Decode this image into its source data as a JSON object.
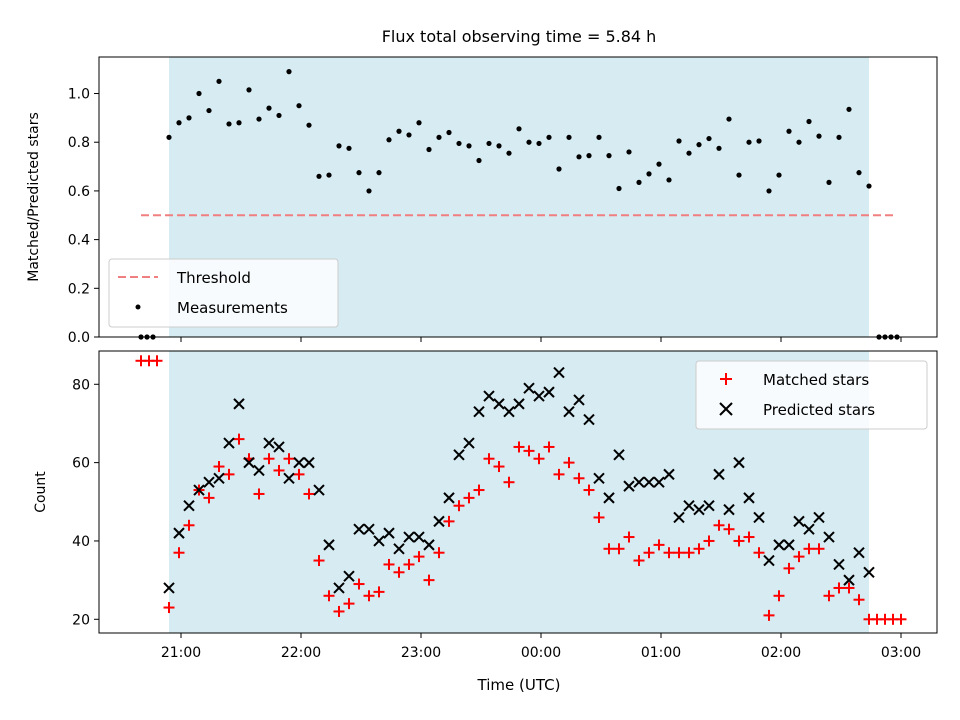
{
  "chart_data": {
    "type": "scatter",
    "title": "Flux total observing time = 5.84 h",
    "xlabel": "Time (UTC)",
    "x_ticks": [
      "21:00",
      "22:00",
      "23:00",
      "00:00",
      "01:00",
      "02:00",
      "03:00"
    ],
    "shaded_region": {
      "start": "20:54",
      "end": "02:44",
      "color": "#add8e6"
    },
    "panels": [
      {
        "id": "ratio",
        "ylabel": "Matched/Predicted stars",
        "ylim": [
          0,
          1.15
        ],
        "y_ticks": [
          0.0,
          0.2,
          0.4,
          0.6,
          0.8,
          1.0
        ],
        "legend_position": "lower-left",
        "threshold": {
          "name": "Threshold",
          "value": 0.5,
          "x_start": "20:40",
          "x_end": "02:56",
          "color": "#f08080"
        },
        "series": [
          {
            "name": "Measurements",
            "marker": "dot",
            "color": "#000000",
            "points": [
              [
                "20:40",
                0.0
              ],
              [
                "20:43",
                0.0
              ],
              [
                "20:46",
                0.0
              ],
              [
                "20:54",
                0.82
              ],
              [
                "20:59",
                0.88
              ],
              [
                "21:04",
                0.9
              ],
              [
                "21:09",
                1.0
              ],
              [
                "21:14",
                0.93
              ],
              [
                "21:19",
                1.05
              ],
              [
                "21:24",
                0.875
              ],
              [
                "21:29",
                0.88
              ],
              [
                "21:34",
                1.015
              ],
              [
                "21:39",
                0.895
              ],
              [
                "21:44",
                0.94
              ],
              [
                "21:49",
                0.91
              ],
              [
                "21:54",
                1.09
              ],
              [
                "21:59",
                0.95
              ],
              [
                "22:04",
                0.87
              ],
              [
                "22:09",
                0.66
              ],
              [
                "22:14",
                0.665
              ],
              [
                "22:19",
                0.785
              ],
              [
                "22:24",
                0.775
              ],
              [
                "22:29",
                0.675
              ],
              [
                "22:34",
                0.6
              ],
              [
                "22:39",
                0.675
              ],
              [
                "22:44",
                0.81
              ],
              [
                "22:49",
                0.845
              ],
              [
                "22:54",
                0.83
              ],
              [
                "22:59",
                0.88
              ],
              [
                "23:04",
                0.77
              ],
              [
                "23:09",
                0.82
              ],
              [
                "23:14",
                0.84
              ],
              [
                "23:19",
                0.795
              ],
              [
                "23:24",
                0.785
              ],
              [
                "23:29",
                0.725
              ],
              [
                "23:34",
                0.795
              ],
              [
                "23:39",
                0.785
              ],
              [
                "23:44",
                0.755
              ],
              [
                "23:49",
                0.855
              ],
              [
                "23:54",
                0.8
              ],
              [
                "23:59",
                0.795
              ],
              [
                "00:04",
                0.82
              ],
              [
                "00:09",
                0.69
              ],
              [
                "00:14",
                0.82
              ],
              [
                "00:19",
                0.74
              ],
              [
                "00:24",
                0.745
              ],
              [
                "00:29",
                0.82
              ],
              [
                "00:34",
                0.745
              ],
              [
                "00:39",
                0.61
              ],
              [
                "00:44",
                0.76
              ],
              [
                "00:49",
                0.635
              ],
              [
                "00:54",
                0.67
              ],
              [
                "00:59",
                0.71
              ],
              [
                "01:04",
                0.645
              ],
              [
                "01:09",
                0.805
              ],
              [
                "01:14",
                0.755
              ],
              [
                "01:19",
                0.79
              ],
              [
                "01:24",
                0.815
              ],
              [
                "01:29",
                0.775
              ],
              [
                "01:34",
                0.895
              ],
              [
                "01:39",
                0.665
              ],
              [
                "01:44",
                0.8
              ],
              [
                "01:49",
                0.805
              ],
              [
                "01:54",
                0.6
              ],
              [
                "01:59",
                0.665
              ],
              [
                "02:04",
                0.845
              ],
              [
                "02:09",
                0.8
              ],
              [
                "02:14",
                0.885
              ],
              [
                "02:19",
                0.825
              ],
              [
                "02:24",
                0.635
              ],
              [
                "02:29",
                0.82
              ],
              [
                "02:34",
                0.935
              ],
              [
                "02:39",
                0.675
              ],
              [
                "02:44",
                0.62
              ],
              [
                "02:49",
                0.0
              ],
              [
                "02:52",
                0.0
              ],
              [
                "02:55",
                0.0
              ],
              [
                "02:58",
                0.0
              ]
            ]
          }
        ]
      },
      {
        "id": "count",
        "ylabel": "Count",
        "ylim": [
          16.5,
          88.5
        ],
        "y_ticks": [
          20,
          40,
          60,
          80
        ],
        "legend_position": "upper-right",
        "series": [
          {
            "name": "Matched stars",
            "marker": "plus",
            "color": "#ff0000",
            "points": [
              [
                "20:40",
                86
              ],
              [
                "20:44",
                86
              ],
              [
                "20:48",
                86
              ],
              [
                "20:54",
                23
              ],
              [
                "20:59",
                37
              ],
              [
                "21:04",
                44
              ],
              [
                "21:09",
                53
              ],
              [
                "21:14",
                51
              ],
              [
                "21:19",
                59
              ],
              [
                "21:24",
                57
              ],
              [
                "21:29",
                66
              ],
              [
                "21:34",
                61
              ],
              [
                "21:39",
                52
              ],
              [
                "21:44",
                61
              ],
              [
                "21:49",
                58
              ],
              [
                "21:54",
                61
              ],
              [
                "21:59",
                57
              ],
              [
                "22:04",
                52
              ],
              [
                "22:09",
                35
              ],
              [
                "22:14",
                26
              ],
              [
                "22:19",
                22
              ],
              [
                "22:24",
                24
              ],
              [
                "22:29",
                29
              ],
              [
                "22:34",
                26
              ],
              [
                "22:39",
                27
              ],
              [
                "22:44",
                34
              ],
              [
                "22:49",
                32
              ],
              [
                "22:54",
                34
              ],
              [
                "22:59",
                36
              ],
              [
                "23:04",
                30
              ],
              [
                "23:09",
                37
              ],
              [
                "23:14",
                45
              ],
              [
                "23:19",
                49
              ],
              [
                "23:24",
                51
              ],
              [
                "23:29",
                53
              ],
              [
                "23:34",
                61
              ],
              [
                "23:39",
                59
              ],
              [
                "23:44",
                55
              ],
              [
                "23:49",
                64
              ],
              [
                "23:54",
                63
              ],
              [
                "23:59",
                61
              ],
              [
                "00:04",
                64
              ],
              [
                "00:09",
                57
              ],
              [
                "00:14",
                60
              ],
              [
                "00:19",
                56
              ],
              [
                "00:24",
                53
              ],
              [
                "00:29",
                46
              ],
              [
                "00:34",
                38
              ],
              [
                "00:39",
                38
              ],
              [
                "00:44",
                41
              ],
              [
                "00:49",
                35
              ],
              [
                "00:54",
                37
              ],
              [
                "00:59",
                39
              ],
              [
                "01:04",
                37
              ],
              [
                "01:09",
                37
              ],
              [
                "01:14",
                37
              ],
              [
                "01:19",
                38
              ],
              [
                "01:24",
                40
              ],
              [
                "01:29",
                44
              ],
              [
                "01:34",
                43
              ],
              [
                "01:39",
                40
              ],
              [
                "01:44",
                41
              ],
              [
                "01:49",
                37
              ],
              [
                "01:54",
                21
              ],
              [
                "01:59",
                26
              ],
              [
                "02:04",
                33
              ],
              [
                "02:09",
                36
              ],
              [
                "02:14",
                38
              ],
              [
                "02:19",
                38
              ],
              [
                "02:24",
                26
              ],
              [
                "02:29",
                28
              ],
              [
                "02:34",
                28
              ],
              [
                "02:39",
                25
              ],
              [
                "02:44",
                20
              ],
              [
                "02:48",
                20
              ],
              [
                "02:52",
                20
              ],
              [
                "02:56",
                20
              ],
              [
                "03:00",
                20
              ]
            ]
          },
          {
            "name": "Predicted stars",
            "marker": "x",
            "color": "#000000",
            "points": [
              [
                "20:54",
                28
              ],
              [
                "20:59",
                42
              ],
              [
                "21:04",
                49
              ],
              [
                "21:09",
                53
              ],
              [
                "21:14",
                55
              ],
              [
                "21:19",
                56
              ],
              [
                "21:24",
                65
              ],
              [
                "21:29",
                75
              ],
              [
                "21:34",
                60
              ],
              [
                "21:39",
                58
              ],
              [
                "21:44",
                65
              ],
              [
                "21:49",
                64
              ],
              [
                "21:54",
                56
              ],
              [
                "21:59",
                60
              ],
              [
                "22:04",
                60
              ],
              [
                "22:09",
                53
              ],
              [
                "22:14",
                39
              ],
              [
                "22:19",
                28
              ],
              [
                "22:24",
                31
              ],
              [
                "22:29",
                43
              ],
              [
                "22:34",
                43
              ],
              [
                "22:39",
                40
              ],
              [
                "22:44",
                42
              ],
              [
                "22:49",
                38
              ],
              [
                "22:54",
                41
              ],
              [
                "22:59",
                41
              ],
              [
                "23:04",
                39
              ],
              [
                "23:09",
                45
              ],
              [
                "23:14",
                51
              ],
              [
                "23:19",
                62
              ],
              [
                "23:24",
                65
              ],
              [
                "23:29",
                73
              ],
              [
                "23:34",
                77
              ],
              [
                "23:39",
                75
              ],
              [
                "23:44",
                73
              ],
              [
                "23:49",
                75
              ],
              [
                "23:54",
                79
              ],
              [
                "23:59",
                77
              ],
              [
                "00:04",
                78
              ],
              [
                "00:09",
                83
              ],
              [
                "00:14",
                73
              ],
              [
                "00:19",
                76
              ],
              [
                "00:24",
                71
              ],
              [
                "00:29",
                56
              ],
              [
                "00:34",
                51
              ],
              [
                "00:39",
                62
              ],
              [
                "00:44",
                54
              ],
              [
                "00:49",
                55
              ],
              [
                "00:54",
                55
              ],
              [
                "00:59",
                55
              ],
              [
                "01:04",
                57
              ],
              [
                "01:09",
                46
              ],
              [
                "01:14",
                49
              ],
              [
                "01:19",
                48
              ],
              [
                "01:24",
                49
              ],
              [
                "01:29",
                57
              ],
              [
                "01:34",
                48
              ],
              [
                "01:39",
                60
              ],
              [
                "01:44",
                51
              ],
              [
                "01:49",
                46
              ],
              [
                "01:54",
                35
              ],
              [
                "01:59",
                39
              ],
              [
                "02:04",
                39
              ],
              [
                "02:09",
                45
              ],
              [
                "02:14",
                43
              ],
              [
                "02:19",
                46
              ],
              [
                "02:24",
                41
              ],
              [
                "02:29",
                34
              ],
              [
                "02:34",
                30
              ],
              [
                "02:39",
                37
              ],
              [
                "02:44",
                32
              ]
            ]
          }
        ]
      }
    ]
  }
}
